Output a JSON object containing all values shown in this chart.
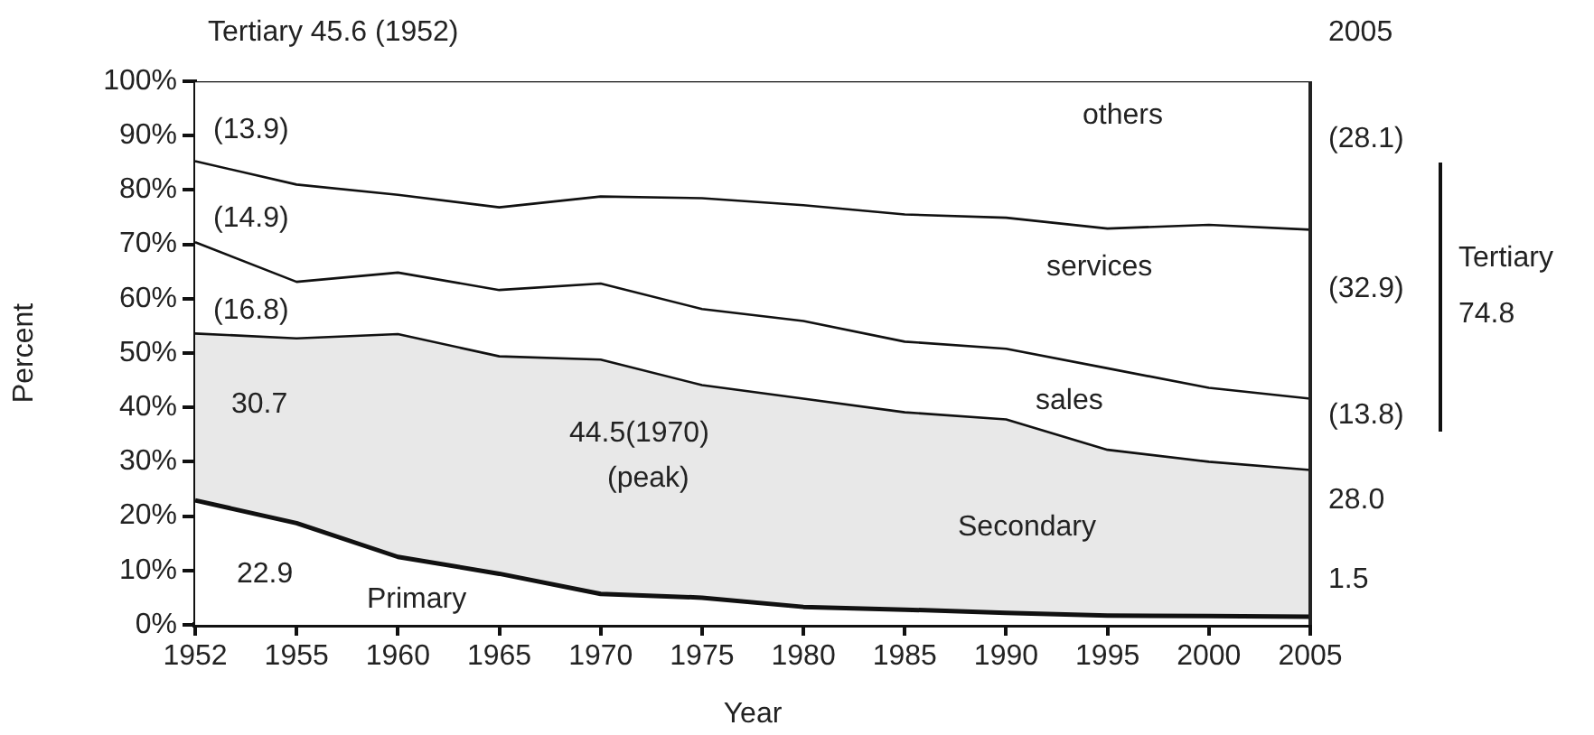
{
  "chart_data": {
    "type": "area",
    "stacked": true,
    "xlabel": "Year",
    "ylabel": "Percent",
    "categories": [
      "1952",
      "1955",
      "1960",
      "1965",
      "1970",
      "1975",
      "1980",
      "1985",
      "1990",
      "1995",
      "2000",
      "2005"
    ],
    "ylim": [
      0,
      100
    ],
    "yticks": [
      {
        "value": 0,
        "label": "0%"
      },
      {
        "value": 10,
        "label": "10%"
      },
      {
        "value": 20,
        "label": "20%"
      },
      {
        "value": 30,
        "label": "30%"
      },
      {
        "value": 40,
        "label": "40%"
      },
      {
        "value": 50,
        "label": "50%"
      },
      {
        "value": 60,
        "label": "60%"
      },
      {
        "value": 70,
        "label": "70%"
      },
      {
        "value": 80,
        "label": "80%"
      },
      {
        "value": 90,
        "label": "90%"
      },
      {
        "value": 100,
        "label": "100%"
      }
    ],
    "grid": false,
    "legend": false,
    "series": [
      {
        "name": "Primary",
        "color": "#ffffff",
        "values": [
          22.9,
          18.7,
          12.5,
          9.4,
          5.7,
          5.0,
          3.3,
          2.8,
          2.2,
          1.7,
          1.6,
          1.5
        ]
      },
      {
        "name": "Secondary",
        "color": "#e8e8e8",
        "values": [
          30.7,
          34.0,
          41.0,
          40.0,
          43.1,
          39.1,
          38.3,
          36.3,
          35.6,
          30.5,
          28.4,
          27.0
        ]
      },
      {
        "name": "sales",
        "color": "#ffffff",
        "values": [
          16.8,
          10.4,
          11.3,
          12.2,
          14.0,
          14.0,
          14.3,
          13.0,
          13.0,
          15.0,
          13.6,
          13.1
        ]
      },
      {
        "name": "services",
        "color": "#ffffff",
        "values": [
          14.9,
          17.9,
          14.3,
          15.2,
          16.0,
          20.4,
          21.3,
          23.4,
          24.1,
          25.7,
          30.0,
          31.1
        ]
      },
      {
        "name": "others",
        "color": "#ffffff",
        "values": [
          14.7,
          19.0,
          20.9,
          23.2,
          21.2,
          21.5,
          22.8,
          24.5,
          25.1,
          27.1,
          26.4,
          27.3
        ]
      }
    ],
    "annotations": [
      "Tertiary 45.6 (1952)",
      "2005",
      "(13.9)",
      "(14.9)",
      "(16.8)",
      "30.7",
      "44.5(1970)",
      "(peak)",
      "22.9",
      "(28.1)",
      "(32.9)",
      "(13.8)",
      "28.0",
      "1.5",
      "Tertiary",
      "74.8"
    ]
  }
}
